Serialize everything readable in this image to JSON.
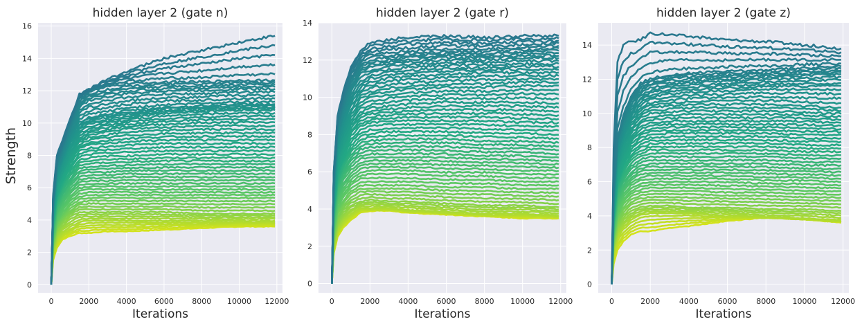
{
  "figure": {
    "ylabel": "Strength",
    "colors": {
      "plot_background": "#eaeaf2",
      "grid": "#ffffff",
      "colormap": "viridis",
      "line_colormap_range": [
        "#2a788e",
        "#d2e21b"
      ]
    }
  },
  "chart_data": [
    {
      "type": "line",
      "title": "hidden layer 2 (gate n)",
      "xlabel": "Iterations",
      "ylabel": "Strength",
      "xlim": [
        -700,
        12300
      ],
      "ylim": [
        -0.5,
        16.2
      ],
      "xticks": [
        0,
        2000,
        4000,
        6000,
        8000,
        10000,
        12000
      ],
      "yticks": [
        0,
        2,
        4,
        6,
        8,
        10,
        12,
        14,
        16
      ],
      "grid": true,
      "n_series": 60,
      "series_count_note": "",
      "x": [
        0,
        100,
        300,
        600,
        1000,
        1500,
        2000,
        3000,
        4000,
        6000,
        8000,
        10000,
        11900
      ],
      "sample_series": [
        {
          "values": [
            0,
            5.6,
            8.0,
            8.9,
            10.2,
            11.8,
            12.1,
            12.7,
            13.2,
            14.0,
            14.5,
            15.0,
            15.4
          ]
        },
        {
          "values": [
            0,
            5.2,
            7.6,
            8.6,
            10.0,
            11.5,
            12.0,
            12.3,
            12.5,
            12.6,
            12.6,
            12.7,
            12.7
          ]
        },
        {
          "values": [
            0,
            5.0,
            7.3,
            8.3,
            9.6,
            11.0,
            11.4,
            11.6,
            11.8,
            12.0,
            12.0,
            12.1,
            12.1
          ]
        },
        {
          "values": [
            0,
            4.8,
            6.9,
            7.9,
            9.1,
            10.1,
            10.4,
            10.6,
            10.8,
            11.0,
            11.1,
            11.2,
            11.2
          ]
        },
        {
          "values": [
            0,
            4.6,
            6.6,
            7.6,
            8.7,
            9.6,
            9.9,
            10.1,
            10.3,
            10.6,
            10.7,
            10.8,
            10.8
          ]
        },
        {
          "values": [
            0,
            4.3,
            6.2,
            7.1,
            8.1,
            9.0,
            9.3,
            9.5,
            9.7,
            9.8,
            9.9,
            9.9,
            9.9
          ]
        },
        {
          "values": [
            0,
            4.0,
            5.8,
            6.7,
            7.6,
            8.4,
            8.6,
            8.7,
            8.8,
            8.9,
            8.9,
            8.9,
            8.9
          ]
        },
        {
          "values": [
            0,
            3.7,
            5.3,
            6.1,
            6.9,
            7.6,
            7.7,
            7.8,
            7.8,
            7.9,
            7.9,
            7.9,
            7.9
          ]
        },
        {
          "values": [
            0,
            3.3,
            4.8,
            5.5,
            6.2,
            6.8,
            6.9,
            6.9,
            7.0,
            7.0,
            7.0,
            7.0,
            7.0
          ]
        },
        {
          "values": [
            0,
            3.0,
            4.3,
            4.9,
            5.5,
            6.0,
            6.1,
            6.1,
            6.1,
            6.1,
            6.1,
            6.1,
            6.1
          ]
        },
        {
          "values": [
            0,
            2.6,
            3.8,
            4.3,
            4.8,
            5.2,
            5.3,
            5.3,
            5.3,
            5.3,
            5.3,
            5.3,
            5.3
          ]
        },
        {
          "values": [
            0,
            2.3,
            3.3,
            3.8,
            4.2,
            4.5,
            4.5,
            4.5,
            4.5,
            4.5,
            4.4,
            4.4,
            4.4
          ]
        },
        {
          "values": [
            0,
            1.9,
            2.8,
            3.2,
            3.5,
            3.8,
            3.9,
            3.9,
            3.9,
            3.9,
            3.9,
            3.9,
            3.9
          ]
        },
        {
          "values": [
            0,
            1.5,
            2.3,
            2.8,
            3.0,
            3.2,
            3.2,
            3.3,
            3.3,
            3.4,
            3.5,
            3.6,
            3.6
          ]
        }
      ]
    },
    {
      "type": "line",
      "title": "hidden layer 2 (gate r)",
      "xlabel": "Iterations",
      "ylabel": "",
      "xlim": [
        -700,
        12300
      ],
      "ylim": [
        -0.5,
        14.0
      ],
      "xticks": [
        0,
        2000,
        4000,
        6000,
        8000,
        10000,
        12000
      ],
      "yticks": [
        0,
        2,
        4,
        6,
        8,
        10,
        12,
        14
      ],
      "grid": true,
      "n_series": 60,
      "x": [
        0,
        100,
        300,
        600,
        1000,
        1500,
        2000,
        3000,
        4000,
        6000,
        8000,
        10000,
        11900
      ],
      "sample_series": [
        {
          "values": [
            0,
            6.0,
            9.0,
            10.3,
            11.6,
            12.5,
            12.9,
            13.1,
            13.2,
            13.3,
            13.2,
            13.3,
            13.3
          ]
        },
        {
          "values": [
            0,
            5.8,
            8.6,
            9.9,
            11.1,
            11.9,
            12.2,
            12.3,
            12.4,
            12.5,
            12.5,
            12.6,
            12.7
          ]
        },
        {
          "values": [
            0,
            5.5,
            8.2,
            9.4,
            10.6,
            11.4,
            11.6,
            11.8,
            11.9,
            12.0,
            12.0,
            12.1,
            12.1
          ]
        },
        {
          "values": [
            0,
            5.2,
            7.7,
            8.8,
            9.9,
            10.6,
            10.9,
            11.1,
            11.2,
            11.3,
            11.4,
            11.4,
            11.4
          ]
        },
        {
          "values": [
            0,
            4.9,
            7.2,
            8.2,
            9.2,
            9.9,
            10.1,
            10.3,
            10.4,
            10.5,
            10.5,
            10.6,
            10.6
          ]
        },
        {
          "values": [
            0,
            4.6,
            6.7,
            7.6,
            8.5,
            9.1,
            9.3,
            9.4,
            9.5,
            9.6,
            9.6,
            9.6,
            9.5
          ]
        },
        {
          "values": [
            0,
            4.2,
            6.2,
            7.0,
            7.9,
            8.4,
            8.6,
            8.7,
            8.7,
            8.7,
            8.7,
            8.6,
            8.6
          ]
        },
        {
          "values": [
            0,
            3.9,
            5.6,
            6.4,
            7.1,
            7.6,
            7.7,
            7.8,
            7.8,
            7.8,
            7.7,
            7.7,
            7.6
          ]
        },
        {
          "values": [
            0,
            3.5,
            5.1,
            5.8,
            6.4,
            6.8,
            6.9,
            6.9,
            6.9,
            6.9,
            6.8,
            6.8,
            6.7
          ]
        },
        {
          "values": [
            0,
            3.1,
            4.5,
            5.1,
            5.6,
            6.0,
            6.1,
            6.1,
            6.1,
            6.0,
            6.0,
            5.9,
            5.9
          ]
        },
        {
          "values": [
            0,
            2.7,
            3.9,
            4.4,
            4.9,
            5.2,
            5.2,
            5.2,
            5.2,
            5.1,
            5.1,
            5.0,
            5.0
          ]
        },
        {
          "values": [
            0,
            2.3,
            3.3,
            3.8,
            4.2,
            4.4,
            4.5,
            4.4,
            4.4,
            4.3,
            4.2,
            4.2,
            4.1
          ]
        },
        {
          "values": [
            0,
            1.9,
            2.8,
            3.3,
            3.7,
            4.0,
            4.0,
            4.0,
            3.9,
            3.8,
            3.7,
            3.7,
            3.6
          ]
        },
        {
          "values": [
            0,
            1.6,
            2.5,
            3.0,
            3.4,
            3.8,
            3.9,
            3.9,
            3.8,
            3.7,
            3.6,
            3.5,
            3.5
          ]
        }
      ]
    },
    {
      "type": "line",
      "title": "hidden layer 2 (gate z)",
      "xlabel": "Iterations",
      "ylabel": "",
      "xlim": [
        -700,
        12300
      ],
      "ylim": [
        -0.5,
        15.3
      ],
      "xticks": [
        0,
        2000,
        4000,
        6000,
        8000,
        10000,
        12000
      ],
      "yticks": [
        0,
        2,
        4,
        6,
        8,
        10,
        12,
        14
      ],
      "grid": true,
      "n_series": 60,
      "x": [
        0,
        100,
        300,
        600,
        1000,
        1500,
        2000,
        3000,
        4000,
        6000,
        8000,
        10000,
        11900
      ],
      "sample_series": [
        {
          "values": [
            0,
            8.0,
            13.0,
            14.0,
            14.2,
            14.3,
            14.7,
            14.6,
            14.5,
            14.3,
            14.2,
            14.0,
            13.8
          ]
        },
        {
          "values": [
            0,
            5.6,
            8.6,
            9.9,
            11.0,
            11.8,
            12.1,
            12.3,
            12.4,
            12.5,
            12.6,
            12.7,
            12.8
          ]
        },
        {
          "values": [
            0,
            5.4,
            8.3,
            9.5,
            10.6,
            11.3,
            11.6,
            11.8,
            11.9,
            12.0,
            12.1,
            12.2,
            12.3
          ]
        },
        {
          "values": [
            0,
            5.1,
            7.9,
            9.0,
            10.0,
            10.7,
            11.0,
            11.2,
            11.3,
            11.4,
            11.5,
            11.5,
            11.5
          ]
        },
        {
          "values": [
            0,
            4.8,
            7.4,
            8.5,
            9.4,
            10.0,
            10.3,
            10.4,
            10.5,
            10.5,
            10.5,
            10.4,
            10.3
          ]
        },
        {
          "values": [
            0,
            4.5,
            6.9,
            7.9,
            8.7,
            9.3,
            9.5,
            9.6,
            9.6,
            9.6,
            9.6,
            9.6,
            9.5
          ]
        },
        {
          "values": [
            0,
            4.1,
            6.3,
            7.2,
            8.0,
            8.5,
            8.7,
            8.8,
            8.8,
            8.8,
            8.8,
            8.7,
            8.7
          ]
        },
        {
          "values": [
            0,
            3.8,
            5.8,
            6.6,
            7.3,
            7.7,
            7.9,
            7.9,
            7.9,
            7.9,
            7.9,
            7.8,
            7.8
          ]
        },
        {
          "values": [
            0,
            3.4,
            5.2,
            5.9,
            6.5,
            6.9,
            7.0,
            7.0,
            7.0,
            7.0,
            7.0,
            6.9,
            6.9
          ]
        },
        {
          "values": [
            0,
            3.1,
            4.6,
            5.3,
            5.8,
            6.1,
            6.2,
            6.2,
            6.2,
            6.2,
            6.1,
            6.1,
            6.0
          ]
        },
        {
          "values": [
            0,
            2.7,
            4.0,
            4.6,
            5.1,
            5.3,
            5.4,
            5.4,
            5.4,
            5.3,
            5.3,
            5.2,
            5.2
          ]
        },
        {
          "values": [
            0,
            2.3,
            3.4,
            3.9,
            4.3,
            4.5,
            4.6,
            4.6,
            4.5,
            4.5,
            4.4,
            4.4,
            4.3
          ]
        },
        {
          "values": [
            0,
            1.9,
            2.8,
            3.3,
            3.7,
            4.0,
            4.1,
            4.1,
            4.1,
            4.0,
            3.9,
            3.8,
            3.7
          ]
        },
        {
          "values": [
            0,
            1.2,
            2.0,
            2.5,
            2.9,
            3.1,
            3.1,
            3.3,
            3.4,
            3.7,
            3.9,
            3.8,
            3.6
          ]
        }
      ]
    }
  ]
}
